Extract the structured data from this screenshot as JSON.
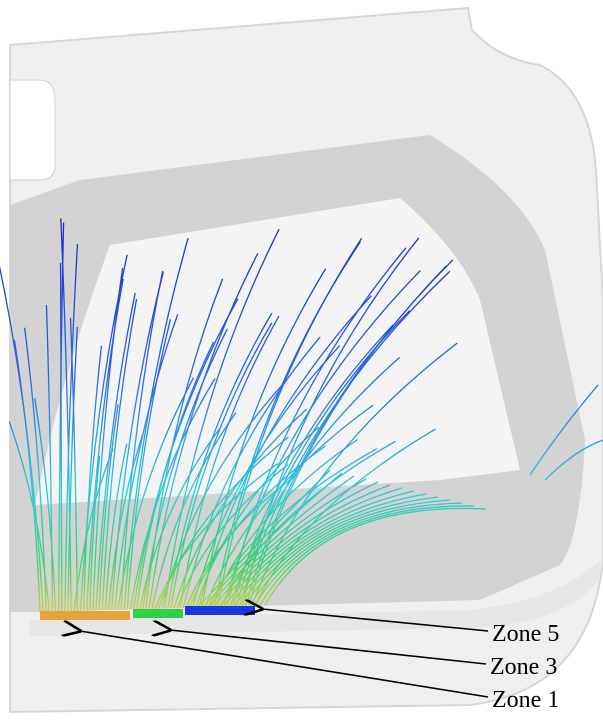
{
  "labels": [
    "Zone 5",
    "Zone 3",
    "Zone 1"
  ]
}
